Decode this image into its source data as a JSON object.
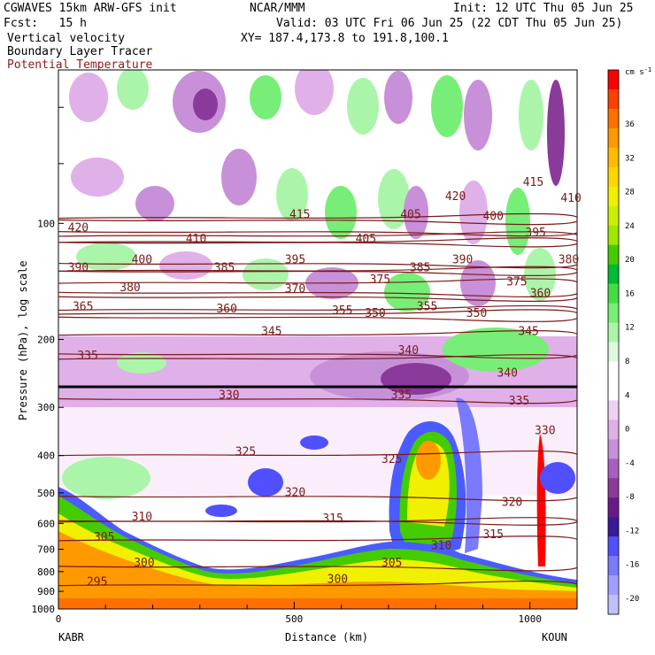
{
  "header": {
    "model": "CGWAVES 15km ARW-GFS init",
    "org": "NCAR/MMM",
    "init": "Init: 12 UTC Thu 05 Jun 25",
    "fcst": "Fcst:   15 h",
    "valid": "Valid: 03 UTC Fri 06 Jun 25 (22 CDT Thu 05 Jun 25)",
    "field1": "Vertical velocity",
    "field2": "Boundary Layer Tracer",
    "field3": "Potential Temperature",
    "xy": "XY= 187.4,173.8 to 191.8,100.1"
  },
  "colors": {
    "theta_line": "#7a1a1a",
    "field3_text": "#8b1a1a",
    "tropopause": "#000000",
    "pbl_orange": "#ff9900",
    "pbl_yellow": "#f0f000",
    "pbl_lime": "#a0e800",
    "pbl_green": "#44cc00",
    "pbl_blue": "#4a5cff",
    "neg_purple": "#8a3a9a",
    "pos_green": "#70dd70"
  },
  "chart_data": {
    "type": "cross-section",
    "xlabel": "Distance (km)",
    "ylabel": "Pressure (hPa), log scale",
    "x_ticks": [
      "0",
      "500",
      "1000"
    ],
    "x_range": [
      0,
      1100
    ],
    "y_ticks": [
      "100",
      "200",
      "300",
      "400",
      "500",
      "600",
      "700",
      "800",
      "900",
      "1000"
    ],
    "y_range": [
      1000,
      40
    ],
    "y_scale": "log",
    "endpoints": {
      "left": "KABR",
      "right": "KOUN"
    },
    "colorbar": {
      "unit": "cm s",
      "unit_exp": "-1",
      "ticks": [
        "36",
        "32",
        "28",
        "24",
        "20",
        "16",
        "12",
        "8",
        "4",
        "0",
        "-4",
        "-8",
        "-12",
        "-16",
        "-20"
      ],
      "colors": [
        "#ff0000",
        "#ff4000",
        "#ff7000",
        "#ff9900",
        "#ffbb00",
        "#ffd700",
        "#f0f000",
        "#ccf000",
        "#a0e800",
        "#44cc00",
        "#00bb33",
        "#44dd44",
        "#77ee77",
        "#aaf5aa",
        "#ddfadd",
        "#ffffff",
        "#ffffff",
        "#f0d0f0",
        "#e0b0e8",
        "#c890d8",
        "#a860c0",
        "#8a3a9a",
        "#6a1a88",
        "#3a1a99",
        "#5050ff",
        "#7a7aff",
        "#a0a0ff",
        "#c0c0ff"
      ]
    },
    "theta_labels": [
      {
        "t": "420",
        "km": 20,
        "p": 105
      },
      {
        "t": "410",
        "km": 270,
        "p": 112
      },
      {
        "t": "415",
        "km": 490,
        "p": 97
      },
      {
        "t": "405",
        "km": 630,
        "p": 112
      },
      {
        "t": "405",
        "km": 725,
        "p": 97
      },
      {
        "t": "420",
        "km": 820,
        "p": 87
      },
      {
        "t": "400",
        "km": 900,
        "p": 98
      },
      {
        "t": "415",
        "km": 985,
        "p": 80
      },
      {
        "t": "395",
        "km": 990,
        "p": 108
      },
      {
        "t": "410",
        "km": 1065,
        "p": 88
      },
      {
        "t": "390",
        "km": 20,
        "p": 133
      },
      {
        "t": "400",
        "km": 155,
        "p": 127
      },
      {
        "t": "385",
        "km": 330,
        "p": 133
      },
      {
        "t": "395",
        "km": 480,
        "p": 127
      },
      {
        "t": "385",
        "km": 745,
        "p": 133
      },
      {
        "t": "390",
        "km": 835,
        "p": 127
      },
      {
        "t": "380",
        "km": 1060,
        "p": 127
      },
      {
        "t": "380",
        "km": 130,
        "p": 150
      },
      {
        "t": "370",
        "km": 480,
        "p": 151
      },
      {
        "t": "375",
        "km": 660,
        "p": 143
      },
      {
        "t": "375",
        "km": 950,
        "p": 145
      },
      {
        "t": "360",
        "km": 1000,
        "p": 155
      },
      {
        "t": "365",
        "km": 30,
        "p": 168
      },
      {
        "t": "360",
        "km": 335,
        "p": 170
      },
      {
        "t": "355",
        "km": 580,
        "p": 172
      },
      {
        "t": "350",
        "km": 650,
        "p": 175
      },
      {
        "t": "355",
        "km": 760,
        "p": 168
      },
      {
        "t": "350",
        "km": 865,
        "p": 175
      },
      {
        "t": "345",
        "km": 430,
        "p": 195
      },
      {
        "t": "345",
        "km": 975,
        "p": 195
      },
      {
        "t": "335",
        "km": 40,
        "p": 225
      },
      {
        "t": "340",
        "km": 720,
        "p": 218
      },
      {
        "t": "340",
        "km": 930,
        "p": 250
      },
      {
        "t": "330",
        "km": 340,
        "p": 285
      },
      {
        "t": "335",
        "km": 705,
        "p": 285
      },
      {
        "t": "335",
        "km": 955,
        "p": 295
      },
      {
        "t": "330",
        "km": 1010,
        "p": 352
      },
      {
        "t": "325",
        "km": 375,
        "p": 400
      },
      {
        "t": "325",
        "km": 685,
        "p": 418
      },
      {
        "t": "320",
        "km": 480,
        "p": 510
      },
      {
        "t": "320",
        "km": 940,
        "p": 540
      },
      {
        "t": "310",
        "km": 155,
        "p": 590
      },
      {
        "t": "315",
        "km": 560,
        "p": 595
      },
      {
        "t": "315",
        "km": 900,
        "p": 655
      },
      {
        "t": "305",
        "km": 75,
        "p": 665
      },
      {
        "t": "310",
        "km": 790,
        "p": 700
      },
      {
        "t": "300",
        "km": 160,
        "p": 775
      },
      {
        "t": "305",
        "km": 685,
        "p": 775
      },
      {
        "t": "300",
        "km": 570,
        "p": 855
      },
      {
        "t": "295",
        "km": 60,
        "p": 870
      }
    ]
  }
}
